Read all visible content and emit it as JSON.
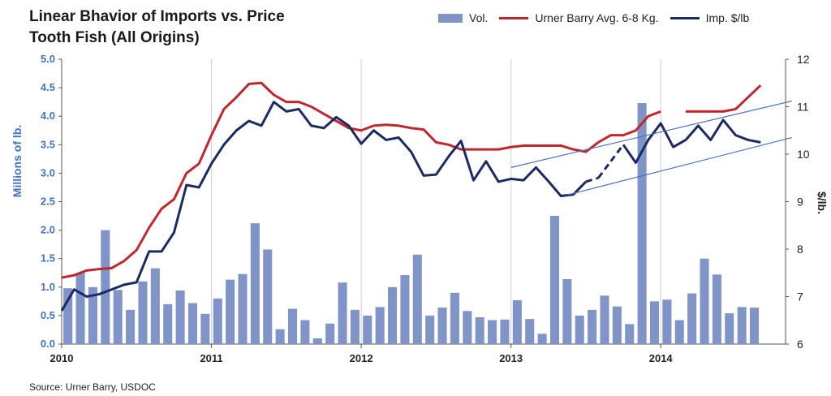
{
  "title_line1": "Linear Bhavior of Imports vs. Price",
  "title_line2": "Tooth Fish (All Origins)",
  "source": "Source: Urner Barry, USDOC",
  "colors": {
    "bars": "#8094c8",
    "urner": "#c0272d",
    "imports": "#1c2a62",
    "trend": "#4b6fc0",
    "left_axis": "#4472c4",
    "grid": "#cfcfcf"
  },
  "chart_data": {
    "type": "bar+line",
    "ylabel_left": "Millions of lb.",
    "ylabel_right": "$/lb.",
    "y_left_range": [
      0.0,
      5.0
    ],
    "y_right_range": [
      6,
      12
    ],
    "y_left_ticks": [
      "0.0",
      "0.5",
      "1.0",
      "1.5",
      "2.0",
      "2.5",
      "3.0",
      "3.5",
      "4.0",
      "4.5",
      "5.0"
    ],
    "y_right_ticks": [
      "6",
      "7",
      "8",
      "9",
      "10",
      "11",
      "12"
    ],
    "x_ticks": [
      {
        "label": "2010",
        "month": 0
      },
      {
        "label": "2011",
        "month": 12
      },
      {
        "label": "2012",
        "month": 24
      },
      {
        "label": "2013",
        "month": 36
      },
      {
        "label": "2014",
        "month": 48
      }
    ],
    "x_months_total": 58,
    "grid": "vertical lines at year ticks",
    "legend_position": "top-right",
    "series": [
      {
        "name": "Vol.",
        "kind": "bar",
        "axis": "left",
        "values": [
          0.98,
          1.25,
          1.0,
          2.0,
          0.95,
          0.6,
          1.1,
          1.33,
          0.7,
          0.94,
          0.72,
          0.53,
          0.8,
          1.13,
          1.23,
          2.12,
          1.66,
          0.26,
          0.62,
          0.42,
          0.1,
          0.36,
          1.08,
          0.6,
          0.5,
          0.65,
          1.0,
          1.21,
          1.57,
          0.5,
          0.64,
          0.9,
          0.58,
          0.47,
          0.42,
          0.43,
          0.77,
          0.44,
          0.18,
          2.25,
          1.14,
          0.5,
          0.6,
          0.85,
          0.66,
          0.35,
          4.23,
          0.75,
          0.78,
          0.42,
          0.89,
          1.5,
          1.22,
          0.54,
          0.65,
          0.64
        ]
      },
      {
        "name": "Urner Barry Avg. 6-8 Kg.",
        "kind": "line",
        "axis": "right",
        "values": [
          7.4,
          7.45,
          7.55,
          7.58,
          7.6,
          7.75,
          7.98,
          8.45,
          8.85,
          9.05,
          9.6,
          9.8,
          10.4,
          10.95,
          11.2,
          11.48,
          11.5,
          11.25,
          11.1,
          11.1,
          11.0,
          10.85,
          10.7,
          10.55,
          10.5,
          10.6,
          10.62,
          10.6,
          10.55,
          10.52,
          10.25,
          10.2,
          10.1,
          10.1,
          10.1,
          10.1,
          10.15,
          10.18,
          10.18,
          10.18,
          10.18,
          10.1,
          10.05,
          10.25,
          10.4,
          10.4,
          10.5,
          10.8,
          10.9,
          null,
          10.9,
          10.9,
          10.9,
          10.9,
          10.95,
          11.2,
          11.45
        ]
      },
      {
        "name": "Imp. $/lb",
        "kind": "line",
        "axis": "right",
        "values": [
          6.7,
          7.15,
          7.0,
          7.05,
          7.15,
          7.25,
          7.3,
          7.95,
          7.95,
          8.35,
          9.35,
          9.3,
          9.8,
          10.2,
          10.5,
          10.7,
          10.6,
          11.1,
          10.9,
          10.95,
          10.6,
          10.55,
          10.78,
          10.6,
          10.22,
          10.5,
          10.3,
          10.35,
          10.05,
          9.55,
          9.57,
          9.95,
          10.28,
          9.45,
          9.85,
          9.42,
          9.48,
          9.45,
          9.72,
          9.43,
          9.12,
          9.15,
          9.42,
          9.5,
          9.85,
          10.2,
          9.82,
          10.3,
          10.65,
          10.15,
          10.3,
          10.6,
          10.3,
          10.72,
          10.4,
          10.3,
          10.25
        ]
      }
    ],
    "trendlines": [
      {
        "from": {
          "month": 36,
          "price": 9.72
        },
        "to": {
          "month": 58.5,
          "price": 11.12
        }
      },
      {
        "from": {
          "month": 40.5,
          "price": 9.14
        },
        "to": {
          "month": 58.5,
          "price": 10.35
        }
      }
    ]
  }
}
